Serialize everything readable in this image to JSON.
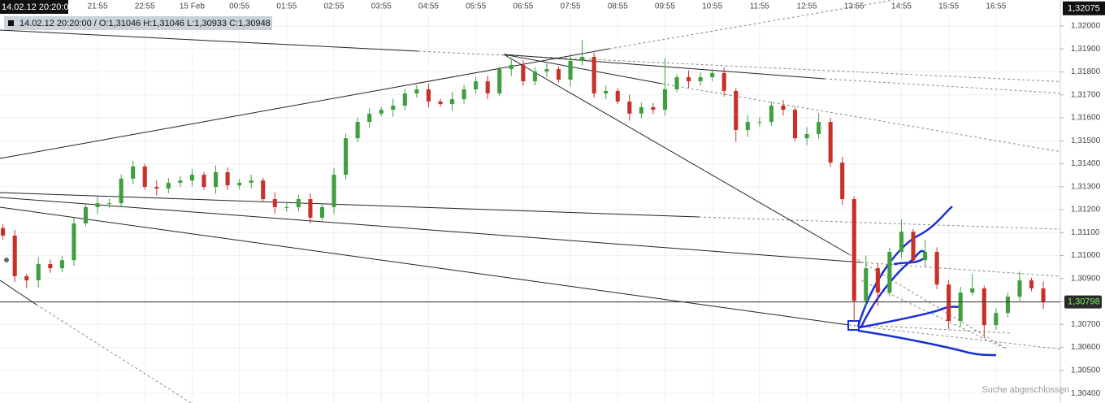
{
  "chart_data": {
    "type": "candlestick",
    "up_color": "#3f9f3f",
    "down_color": "#c8302a",
    "grid": true,
    "xlim": [
      -0.25,
      89.44
    ],
    "xticks": [
      {
        "value": 8,
        "label": "21:55"
      },
      {
        "value": 12,
        "label": "22:55"
      },
      {
        "value": 16,
        "label": "15 Feb"
      },
      {
        "value": 20,
        "label": "00:55"
      },
      {
        "value": 24,
        "label": "01:55"
      },
      {
        "value": 28,
        "label": "02:55"
      },
      {
        "value": 32,
        "label": "03:55"
      },
      {
        "value": 36,
        "label": "04:55"
      },
      {
        "value": 40,
        "label": "05:55"
      },
      {
        "value": 44,
        "label": "06:55"
      },
      {
        "value": 48,
        "label": "07:55"
      },
      {
        "value": 52,
        "label": "08:55"
      },
      {
        "value": 56,
        "label": "09:55"
      },
      {
        "value": 60,
        "label": "10:55"
      },
      {
        "value": 64,
        "label": "11:55"
      },
      {
        "value": 68,
        "label": "12:55"
      },
      {
        "value": 72,
        "label": "13:55"
      },
      {
        "value": 76,
        "label": "14:55"
      },
      {
        "value": 80,
        "label": "15:55"
      },
      {
        "value": 84,
        "label": "16:55"
      }
    ],
    "ylim": [
      1.30358,
      1.32113
    ],
    "yticks": [
      {
        "value": 1.32,
        "label": "1,32000"
      },
      {
        "value": 1.319,
        "label": "1,31900"
      },
      {
        "value": 1.318,
        "label": "1,31800"
      },
      {
        "value": 1.317,
        "label": "1,31700"
      },
      {
        "value": 1.316,
        "label": "1,31600"
      },
      {
        "value": 1.315,
        "label": "1,31500"
      },
      {
        "value": 1.314,
        "label": "1,31400"
      },
      {
        "value": 1.313,
        "label": "1,31300"
      },
      {
        "value": 1.312,
        "label": "1,31200"
      },
      {
        "value": 1.311,
        "label": "1,31100"
      },
      {
        "value": 1.31,
        "label": "1,31000"
      },
      {
        "value": 1.309,
        "label": "1,30900"
      },
      {
        "value": 1.308,
        "label": "1,30800"
      },
      {
        "value": 1.307,
        "label": "1,30700"
      },
      {
        "value": 1.306,
        "label": "1,30600"
      },
      {
        "value": 1.305,
        "label": "1,30500"
      },
      {
        "value": 1.304,
        "label": "1,30400"
      }
    ],
    "cursor_time": "14.02.12 20:20:00",
    "cursor_price": {
      "value": 1.32075,
      "label": "1,32075"
    },
    "last_price": {
      "value": 1.30798,
      "label": "1,30798"
    },
    "info": "14.02.12 20:20:00 / O:1,31046 H:1,31046 L:1,30933 C:1,30948",
    "status": "Suche abgeschlossen",
    "open": [
      1.3112,
      1.31087,
      1.3091,
      1.30892,
      1.30963,
      1.30945,
      1.3098,
      1.3114,
      1.31211,
      1.31228,
      1.31228,
      1.31335,
      1.31388,
      1.31299,
      1.31292,
      1.31317,
      1.31327,
      1.31352,
      1.31299,
      1.31363,
      1.31306,
      1.31317,
      1.31327,
      1.31246,
      1.31211,
      1.31211,
      1.31246,
      1.31165,
      1.31211,
      1.31352,
      1.31511,
      1.31582,
      1.31618,
      1.31635,
      1.31653,
      1.31706,
      1.31724,
      1.31671,
      1.3166,
      1.31681,
      1.31724,
      1.31759,
      1.31706,
      1.31812,
      1.3183,
      1.31759,
      1.31802,
      1.31812,
      1.31766,
      1.31848,
      1.31865,
      1.31706,
      1.31717,
      1.31671,
      1.31618,
      1.31646,
      1.31635,
      1.31724,
      1.31777,
      1.31759,
      1.31777,
      1.31795,
      1.31717,
      1.31547,
      1.31582,
      1.31582,
      1.31653,
      1.31635,
      1.31511,
      1.31529,
      1.31582,
      1.31405,
      1.31246,
      1.30803,
      1.30945,
      1.30839,
      1.31016,
      1.31104,
      1.3098,
      1.31016,
      1.30874,
      1.30715,
      1.30839,
      1.30857,
      1.30697,
      1.3075,
      1.30821,
      1.30892,
      1.30857
    ],
    "high": [
      1.31138,
      1.31112,
      1.30922,
      1.30993,
      1.30983,
      1.30998,
      1.31165,
      1.31223,
      1.31258,
      1.31248,
      1.31353,
      1.31413,
      1.314,
      1.31329,
      1.31337,
      1.31345,
      1.31377,
      1.31364,
      1.31393,
      1.31383,
      1.31335,
      1.31352,
      1.31339,
      1.31276,
      1.31231,
      1.31264,
      1.31271,
      1.31223,
      1.31382,
      1.31531,
      1.316,
      1.31643,
      1.31647,
      1.31683,
      1.31726,
      1.31742,
      1.31749,
      1.31683,
      1.31711,
      1.31744,
      1.31777,
      1.31784,
      1.31824,
      1.3186,
      1.3185,
      1.3182,
      1.31837,
      1.31824,
      1.31878,
      1.3194,
      1.31883,
      1.31742,
      1.31729,
      1.31701,
      1.31666,
      1.31664,
      1.3186,
      1.31789,
      1.31807,
      1.31797,
      1.31813,
      1.3182,
      1.31729,
      1.31612,
      1.31602,
      1.31671,
      1.31678,
      1.31647,
      1.31559,
      1.3162,
      1.316,
      1.3143,
      1.31258,
      1.31,
      1.30965,
      1.31034,
      1.31158,
      1.31116,
      1.3107,
      1.31036,
      1.30892,
      1.30864,
      1.3092,
      1.30869,
      1.3077,
      1.30839,
      1.3093,
      1.30904,
      1.30887
    ],
    "low": [
      1.31069,
      1.30885,
      1.30858,
      1.30862,
      1.30925,
      1.30927,
      1.30955,
      1.31128,
      1.31181,
      1.31208,
      1.3121,
      1.3131,
      1.31287,
      1.31262,
      1.31272,
      1.31299,
      1.31302,
      1.31287,
      1.31269,
      1.31286,
      1.31288,
      1.31292,
      1.31234,
      1.31181,
      1.31191,
      1.31193,
      1.3114,
      1.31153,
      1.31181,
      1.31332,
      1.31493,
      1.31557,
      1.31606,
      1.31605,
      1.31633,
      1.31688,
      1.31646,
      1.31648,
      1.3163,
      1.31661,
      1.31706,
      1.31681,
      1.31694,
      1.31782,
      1.31739,
      1.31741,
      1.31777,
      1.31754,
      1.31736,
      1.31828,
      1.31688,
      1.31681,
      1.31659,
      1.31588,
      1.31598,
      1.31617,
      1.3161,
      1.31712,
      1.31729,
      1.31739,
      1.31759,
      1.31692,
      1.31495,
      1.31517,
      1.31562,
      1.31564,
      1.3161,
      1.31499,
      1.31481,
      1.31509,
      1.31387,
      1.31221,
      1.30715,
      1.30773,
      1.3078,
      1.30821,
      1.30991,
      1.30968,
      1.3095,
      1.30854,
      1.3068,
      1.3069,
      1.30827,
      1.3064,
      1.30677,
      1.30732,
      1.30801,
      1.30845,
      1.30768
    ],
    "close": [
      1.31087,
      1.3091,
      1.30892,
      1.30963,
      1.30945,
      1.3098,
      1.3114,
      1.31211,
      1.31228,
      1.31228,
      1.31335,
      1.31388,
      1.31299,
      1.31292,
      1.31317,
      1.31327,
      1.31352,
      1.31299,
      1.31363,
      1.31306,
      1.31317,
      1.31327,
      1.31246,
      1.31211,
      1.31211,
      1.31246,
      1.31165,
      1.31211,
      1.31352,
      1.31511,
      1.31582,
      1.31618,
      1.31635,
      1.31653,
      1.31706,
      1.31724,
      1.31671,
      1.3166,
      1.31681,
      1.31724,
      1.31759,
      1.31706,
      1.31812,
      1.3183,
      1.31759,
      1.31802,
      1.31812,
      1.31766,
      1.31848,
      1.31865,
      1.31706,
      1.31717,
      1.31671,
      1.31618,
      1.31646,
      1.31635,
      1.31724,
      1.31777,
      1.31759,
      1.31777,
      1.31795,
      1.31717,
      1.31547,
      1.31582,
      1.31582,
      1.31653,
      1.31635,
      1.31511,
      1.31529,
      1.31582,
      1.31405,
      1.31246,
      1.30803,
      1.30945,
      1.30839,
      1.31016,
      1.31104,
      1.3098,
      1.31016,
      1.30874,
      1.30715,
      1.30839,
      1.30857,
      1.30697,
      1.3075,
      1.30821,
      1.30892,
      1.30857,
      1.30798
    ]
  }
}
